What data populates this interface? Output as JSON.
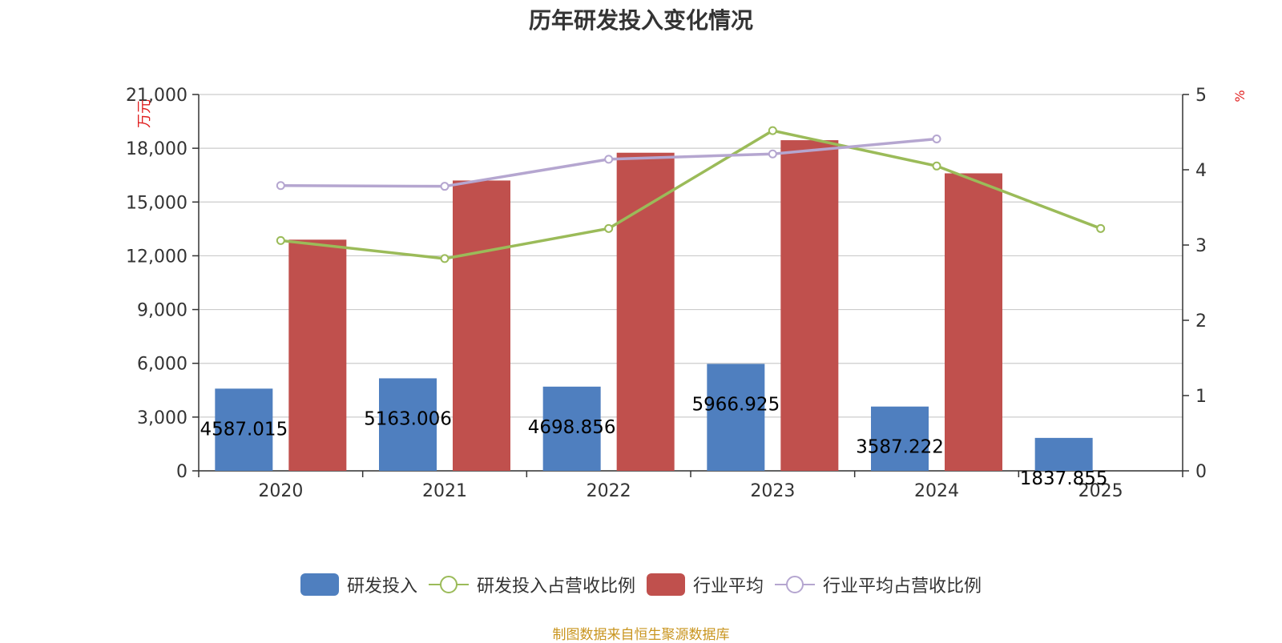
{
  "chart_data": {
    "type": "bar",
    "title": "历年研发投入变化情况",
    "categories": [
      "2020",
      "2021",
      "2022",
      "2023",
      "2024",
      "2025"
    ],
    "y_left": {
      "unit": "万元",
      "ylim": [
        0,
        21000
      ],
      "ticks": [
        "0",
        "3,000",
        "6,000",
        "9,000",
        "12,000",
        "15,000",
        "18,000",
        "21,000"
      ]
    },
    "y_right": {
      "unit": "%",
      "ylim": [
        0,
        5
      ],
      "ticks": [
        "0",
        "1",
        "2",
        "3",
        "4",
        "5"
      ]
    },
    "series": [
      {
        "name": "研发投入",
        "kind": "bar",
        "axis": "left",
        "color": "#4f7fbf",
        "values": [
          4587.015,
          5163.006,
          4698.856,
          5966.925,
          3587.222,
          1837.855
        ],
        "labels": [
          "4587.015",
          "5163.006",
          "4698.856",
          "5966.925",
          "3587.222",
          "1837.855"
        ]
      },
      {
        "name": "研发投入占营收比例",
        "kind": "line",
        "axis": "right",
        "color": "#9bbb59",
        "values": [
          3.06,
          2.82,
          3.22,
          4.52,
          4.05,
          3.22
        ]
      },
      {
        "name": "行业平均",
        "kind": "bar",
        "axis": "left",
        "color": "#c0504d",
        "values": [
          12900,
          16200,
          17750,
          18450,
          16600,
          null
        ]
      },
      {
        "name": "行业平均占营收比例",
        "kind": "line",
        "axis": "right",
        "color": "#b5a6d0",
        "values": [
          3.79,
          3.78,
          4.14,
          4.21,
          4.41,
          null
        ]
      }
    ],
    "grid": true,
    "legend_position": "bottom"
  },
  "footer": "制图数据来自恒生聚源数据库"
}
